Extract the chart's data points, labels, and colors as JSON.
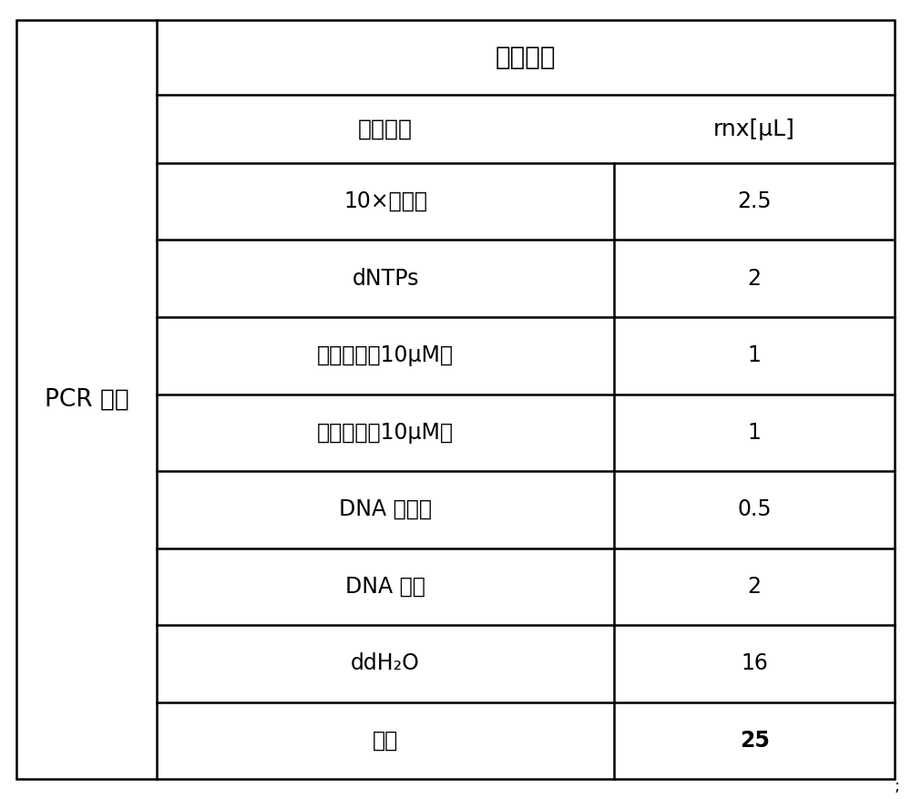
{
  "title": "反应体系",
  "col1_header": "试剂组分",
  "col2_header": "rnx[μL]",
  "rows": [
    {
      "component": "10×缓冲液",
      "amount": "2.5",
      "bold": false
    },
    {
      "component": "dNTPs",
      "amount": "2",
      "bold": false
    },
    {
      "component": "上游引物（10μM）",
      "amount": "1",
      "bold": false
    },
    {
      "component": "下游引物（10μM）",
      "amount": "1",
      "bold": false
    },
    {
      "component": "DNA 聚合酶",
      "amount": "0.5",
      "bold": false
    },
    {
      "component": "DNA 样本",
      "amount": "2",
      "bold": false
    },
    {
      "component": "ddH₂O",
      "amount": "16",
      "bold": false
    },
    {
      "component": "总共",
      "amount": "25",
      "bold": true
    }
  ],
  "left_label": "PCR 反应",
  "bg_color": "#ffffff",
  "line_color": "#000000",
  "text_color": "#000000",
  "font_size_title": 20,
  "font_size_header": 18,
  "font_size_body": 17,
  "font_size_left": 19,
  "fig_width": 10.0,
  "fig_height": 8.77,
  "dpi": 100
}
